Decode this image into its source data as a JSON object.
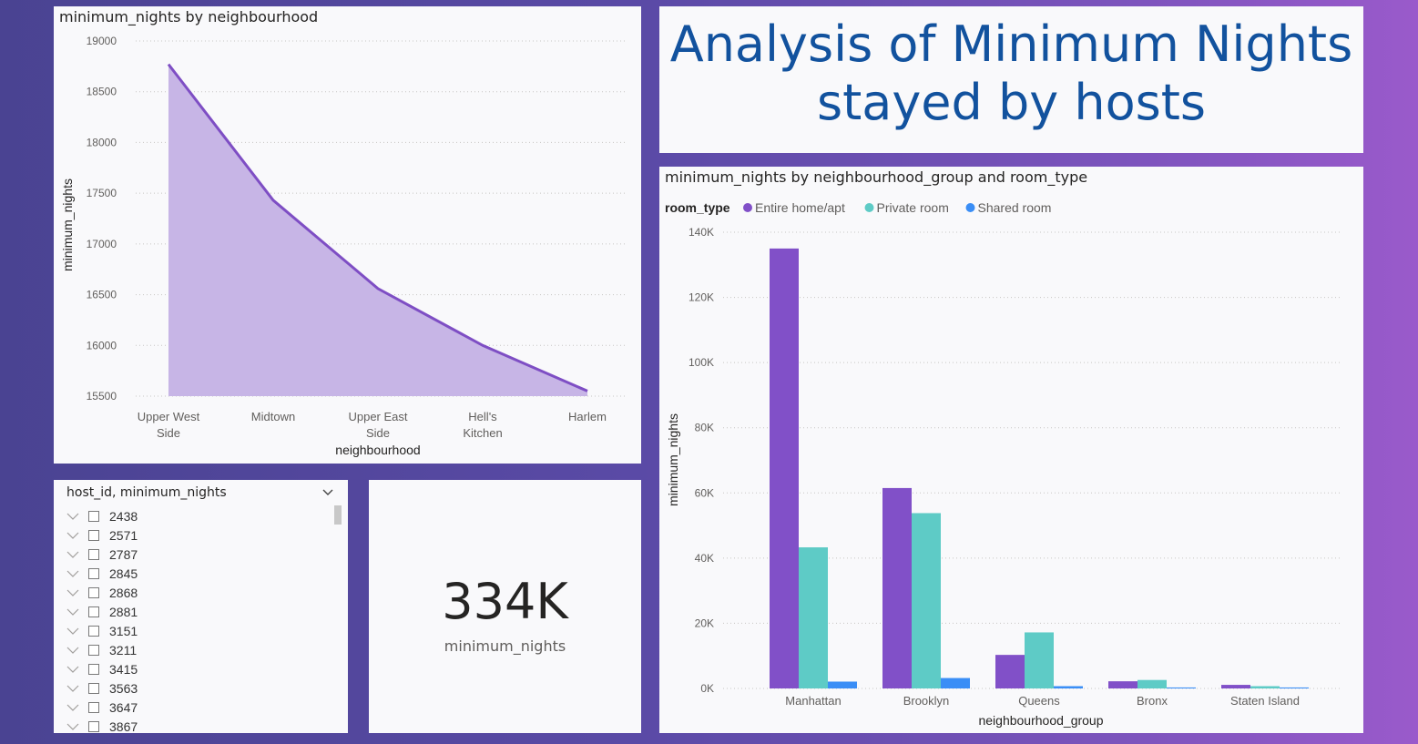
{
  "report_title_line1": "Analysis of Minimum Nights",
  "report_title_line2": "stayed by hosts",
  "area_chart": {
    "title": "minimum_nights by neighbourhood",
    "xlabel": "neighbourhood",
    "ylabel": "minimum_nights",
    "fill_color": "#c7b5e6",
    "line_color": "#7e4ec4",
    "y_ticks": [
      "19000",
      "18500",
      "18000",
      "17500",
      "17000",
      "16500",
      "16000",
      "15500"
    ]
  },
  "bar_chart": {
    "title": "minimum_nights by neighbourhood_group and room_type",
    "legend_title": "room_type",
    "xlabel": "neighbourhood_group",
    "ylabel": "minimum_nights",
    "y_ticks": [
      "140K",
      "120K",
      "100K",
      "80K",
      "60K",
      "40K",
      "20K",
      "0K"
    ]
  },
  "slicer": {
    "header": "host_id, minimum_nights",
    "items": [
      "2438",
      "2571",
      "2787",
      "2845",
      "2868",
      "2881",
      "3151",
      "3211",
      "3415",
      "3563",
      "3647",
      "3867"
    ]
  },
  "card": {
    "value": "334K",
    "label": "minimum_nights"
  },
  "chart_data": [
    {
      "type": "area",
      "title": "minimum_nights by neighbourhood",
      "xlabel": "neighbourhood",
      "ylabel": "minimum_nights",
      "categories": [
        "Upper West Side",
        "Midtown",
        "Upper East Side",
        "Hell's Kitchen",
        "Harlem"
      ],
      "values": [
        18770,
        17430,
        16560,
        16000,
        15550
      ],
      "ylim": [
        15500,
        19000
      ],
      "grid": true
    },
    {
      "type": "bar",
      "title": "minimum_nights by neighbourhood_group and room_type",
      "xlabel": "neighbourhood_group",
      "ylabel": "minimum_nights",
      "categories": [
        "Manhattan",
        "Brooklyn",
        "Queens",
        "Bronx",
        "Staten Island"
      ],
      "series": [
        {
          "name": "Entire home/apt",
          "color": "#8150c8",
          "values": [
            135000,
            61500,
            10300,
            2200,
            1100
          ]
        },
        {
          "name": "Private room",
          "color": "#5ecbc6",
          "values": [
            43300,
            53800,
            17200,
            2600,
            700
          ]
        },
        {
          "name": "Shared room",
          "color": "#3a8ef6",
          "values": [
            2100,
            3200,
            700,
            300,
            300
          ]
        }
      ],
      "ylim": [
        0,
        140000
      ],
      "legend_position": "top-left",
      "grid": true
    }
  ]
}
